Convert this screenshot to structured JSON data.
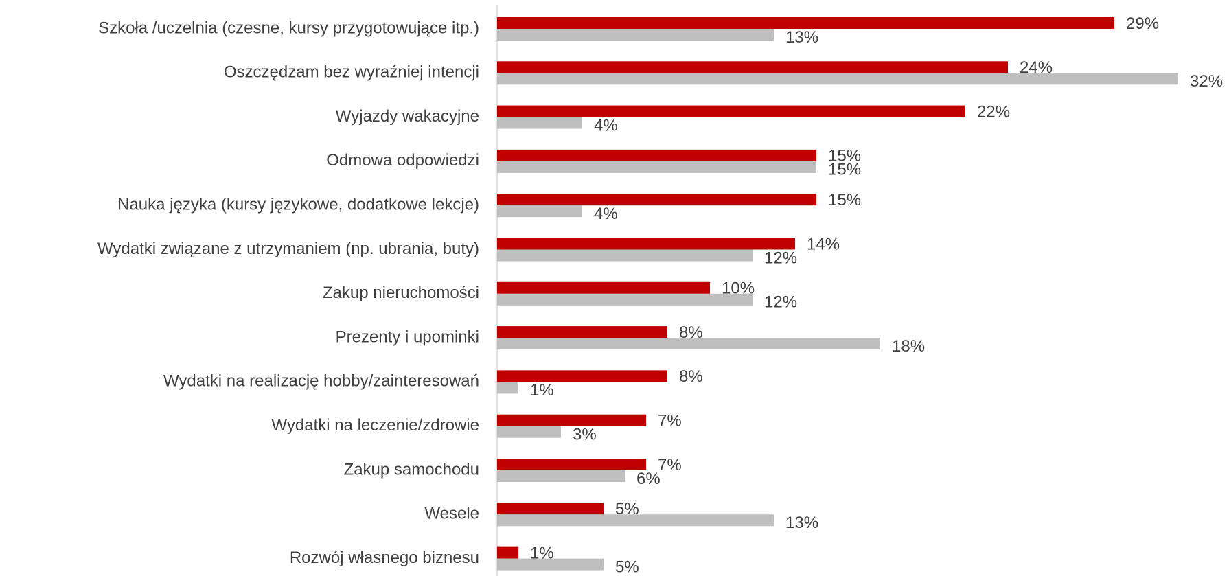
{
  "chart_data": {
    "type": "bar",
    "orientation": "horizontal",
    "categories": [
      "Szkoła /uczelnia (czesne, kursy przygotowujące itp.)",
      "Oszczędzam bez wyraźniej intencji",
      "Wyjazdy wakacyjne",
      "Odmowa odpowiedzi",
      "Nauka języka (kursy językowe, dodatkowe lekcje)",
      "Wydatki związane z utrzymaniem (np. ubrania, buty)",
      "Zakup nieruchomości",
      "Prezenty i upominki",
      "Wydatki na realizację hobby/zainteresowań",
      "Wydatki na leczenie/zdrowie",
      "Zakup samochodu",
      "Wesele",
      "Rozwój własnego biznesu"
    ],
    "series": [
      {
        "color": "#c00000",
        "values": [
          29,
          24,
          22,
          15,
          15,
          14,
          10,
          8,
          8,
          7,
          7,
          5,
          1
        ],
        "value_labels": [
          "29%",
          "24%",
          "22%",
          "15%",
          "15%",
          "14%",
          "10%",
          "8%",
          "8%",
          "7%",
          "7%",
          "5%",
          "1%"
        ]
      },
      {
        "color": "#bfbfbf",
        "values": [
          13,
          32,
          4,
          15,
          4,
          12,
          12,
          18,
          1,
          3,
          6,
          13,
          5
        ],
        "value_labels": [
          "13%",
          "32%",
          "4%",
          "15%",
          "4%",
          "12%",
          "12%",
          "18%",
          "1%",
          "3%",
          "6%",
          "13%",
          "5%"
        ]
      }
    ],
    "xlim": [
      0,
      34
    ]
  }
}
